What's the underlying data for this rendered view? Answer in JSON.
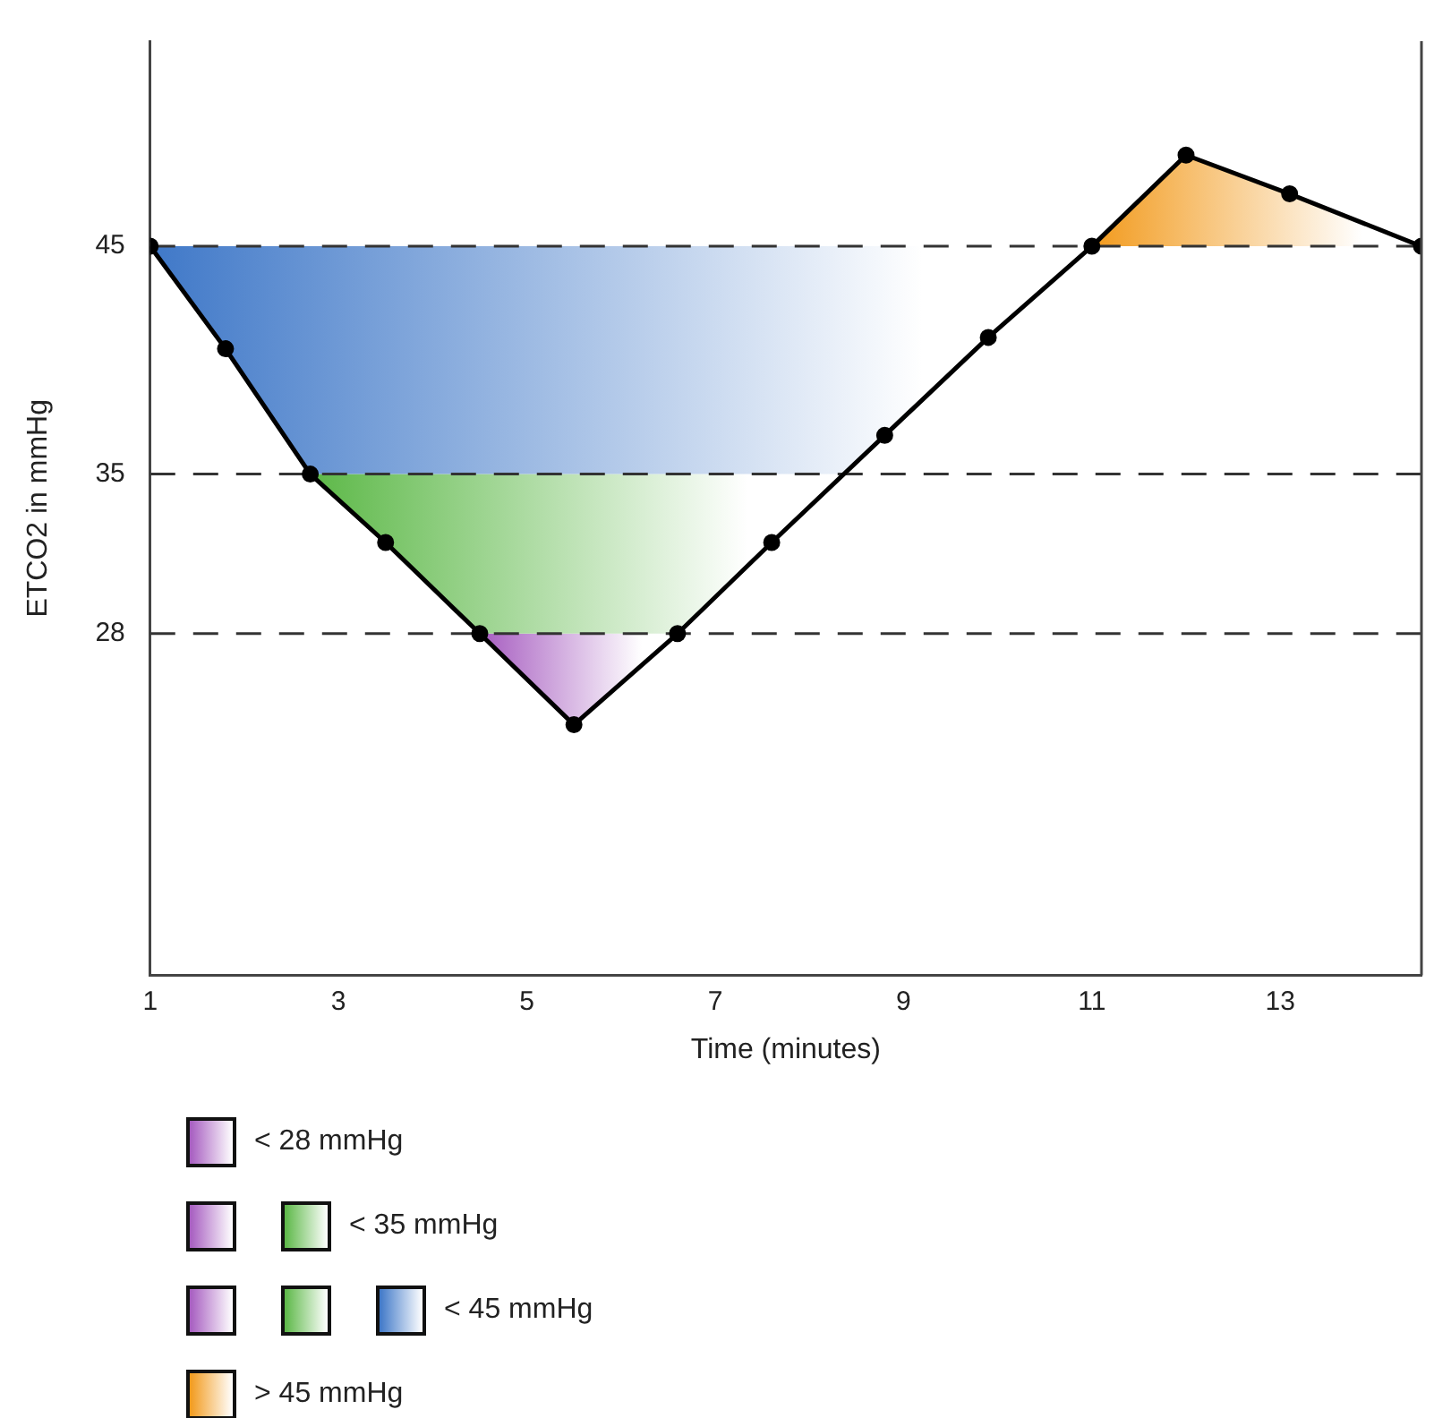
{
  "chart_data": {
    "type": "line",
    "xlabel": "Time (minutes)",
    "ylabel": "ETCO2 in mmHg",
    "x": [
      1,
      1.8,
      2.7,
      3.5,
      4.5,
      5.5,
      6.6,
      7.6,
      8.8,
      9.9,
      11,
      12,
      13.1,
      14.5
    ],
    "series": [
      {
        "color": "#000000",
        "values": [
          45,
          40.5,
          35,
          32,
          28,
          24,
          28,
          32,
          36.7,
          41,
          45,
          49,
          47.3,
          45
        ]
      }
    ],
    "xlim": [
      1,
      14.5
    ],
    "xticks": [
      1,
      3,
      5,
      7,
      9,
      11,
      13
    ],
    "ylim": [
      13,
      54
    ],
    "yticks": [
      28,
      35,
      45
    ],
    "ref_lines": [
      {
        "axis": "y",
        "value": 45,
        "line_style": "dashed",
        "color": "#333333"
      },
      {
        "axis": "y",
        "value": 35,
        "line_style": "dashed",
        "color": "#333333"
      },
      {
        "axis": "y",
        "value": 28,
        "line_style": "dashed",
        "color": "#333333"
      }
    ],
    "bands": [
      {
        "axis": "y",
        "from": 13,
        "to": 28,
        "label": "< 28 mmHg",
        "color": "#a65cc0"
      },
      {
        "axis": "y",
        "from": 28,
        "to": 35,
        "label": "< 35 mmHg",
        "color": "#5cb847"
      },
      {
        "axis": "y",
        "from": 35,
        "to": 45,
        "label": "< 45 mmHg",
        "color": "#3f78c8"
      },
      {
        "axis": "y",
        "from": 45,
        "to": 54,
        "label": "> 45 mmHg",
        "color": "#f29a1c"
      }
    ],
    "grid": false,
    "legend": "bottom",
    "marker": "circle",
    "line_style": "solid"
  }
}
